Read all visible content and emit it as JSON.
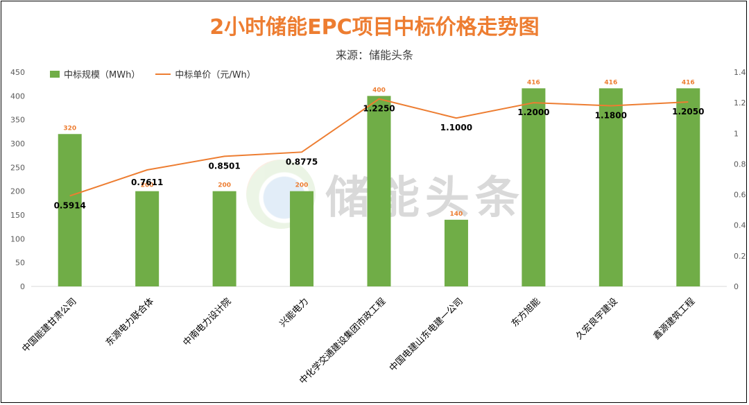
{
  "chart_data": {
    "type": "bar",
    "title": "2小时储能EPC项目中标价格走势图",
    "subtitle": "来源：储能头条",
    "categories": [
      "中国能建甘肃公司",
      "东源电力联合体",
      "中南电力设计院",
      "兴能电力",
      "中化学交通建设集团市政工程",
      "中国电建山东电建一公司",
      "东方旭能",
      "久宏良宇建设",
      "鑫源建筑工程"
    ],
    "series": [
      {
        "name": "中标规模（MWh）",
        "type": "bar",
        "axis": "left",
        "color": "#70ad47",
        "values": [
          320,
          200,
          200,
          200,
          400,
          140,
          416,
          416,
          416
        ],
        "labels": [
          "320",
          "200",
          "200",
          "200",
          "400",
          "140",
          "416",
          "416",
          "416"
        ]
      },
      {
        "name": "中标单价（元/Wh）",
        "type": "line",
        "axis": "right",
        "color": "#ed7d31",
        "values": [
          0.5914,
          0.7611,
          0.8501,
          0.8775,
          1.225,
          1.1,
          1.2,
          1.18,
          1.205
        ],
        "labels": [
          "0.5914",
          "0.7611",
          "0.8501",
          "0.8775",
          "1.2250",
          "1.1000",
          "1.2000",
          "1.1800",
          "1.2050"
        ]
      }
    ],
    "ylim_left": [
      0,
      450
    ],
    "ylim_right": [
      0,
      1.4
    ],
    "yticks_left": [
      "0",
      "50",
      "100",
      "150",
      "200",
      "250",
      "300",
      "350",
      "400",
      "450"
    ],
    "yticks_right": [
      "0",
      "0.2",
      "0.4",
      "0.6",
      "0.8",
      "1",
      "1.2",
      "1.4"
    ],
    "legend_position": "top-left",
    "grid": false,
    "watermark": "储能头条"
  }
}
